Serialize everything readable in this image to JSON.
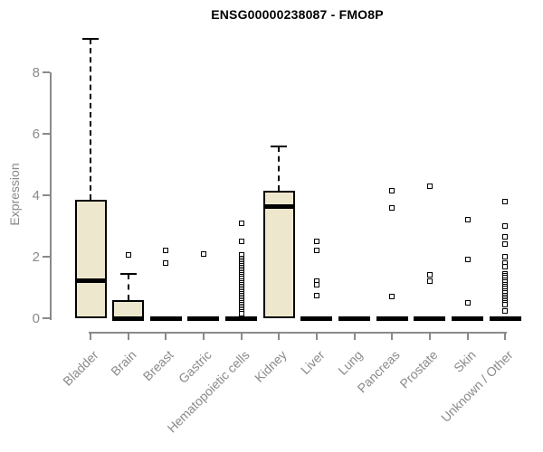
{
  "colors": {
    "box_fill": "#EDE7CE",
    "box_border": "#000000",
    "median": "#000000",
    "axis": "#8A8A8A",
    "title": "#000000",
    "background": "#FFFFFF",
    "outlier_fill": "#FFFFFF"
  },
  "chart_data": {
    "type": "boxplot",
    "title": "ENSG00000238087 - FMO8P",
    "xlabel": "",
    "ylabel": "Expression",
    "ylim": [
      0,
      9.4
    ],
    "yticks": [
      0,
      2,
      4,
      6,
      8
    ],
    "grid": false,
    "legend": "none",
    "categories": [
      "Bladder",
      "Brain",
      "Breast",
      "Gastric",
      "Hematopoietic cells",
      "Kidney",
      "Liver",
      "Lung",
      "Pancreas",
      "Prostate",
      "Skin",
      "Unknown / Other"
    ],
    "boxes": [
      {
        "category": "Bladder",
        "whisker_low": 0,
        "q1": 0,
        "median": 1.25,
        "q3": 3.85,
        "whisker_high": 9.1,
        "outliers": []
      },
      {
        "category": "Brain",
        "whisker_low": 0,
        "q1": 0,
        "median": 0,
        "q3": 0.6,
        "whisker_high": 1.45,
        "outliers": [
          2.05
        ]
      },
      {
        "category": "Breast",
        "whisker_low": 0,
        "q1": 0,
        "median": 0,
        "q3": 0,
        "whisker_high": 0,
        "outliers": [
          2.2,
          1.8
        ]
      },
      {
        "category": "Gastric",
        "whisker_low": 0,
        "q1": 0,
        "median": 0,
        "q3": 0,
        "whisker_high": 0,
        "outliers": [
          2.1
        ]
      },
      {
        "category": "Hematopoietic cells",
        "whisker_low": 0,
        "q1": 0,
        "median": 0,
        "q3": 0,
        "whisker_high": 0,
        "outliers": [
          3.1,
          2.5,
          2.05,
          1.95,
          1.88,
          1.82,
          1.76,
          1.7,
          1.64,
          1.58,
          1.52,
          1.46,
          1.4,
          1.34,
          1.28,
          1.22,
          1.16,
          1.1,
          1.04,
          0.98,
          0.92,
          0.86,
          0.8,
          0.74,
          0.68,
          0.62,
          0.56,
          0.5,
          0.44,
          0.38,
          0.32,
          0.26,
          0.2,
          0.15
        ]
      },
      {
        "category": "Kidney",
        "whisker_low": 0,
        "q1": 0,
        "median": 3.65,
        "q3": 4.15,
        "whisker_high": 5.6,
        "outliers": []
      },
      {
        "category": "Liver",
        "whisker_low": 0,
        "q1": 0,
        "median": 0,
        "q3": 0,
        "whisker_high": 0,
        "outliers": [
          2.5,
          2.2,
          1.2,
          1.1,
          0.75
        ]
      },
      {
        "category": "Lung",
        "whisker_low": 0,
        "q1": 0,
        "median": 0,
        "q3": 0,
        "whisker_high": 0,
        "outliers": []
      },
      {
        "category": "Pancreas",
        "whisker_low": 0,
        "q1": 0,
        "median": 0,
        "q3": 0,
        "whisker_high": 0,
        "outliers": [
          4.15,
          3.6,
          0.7
        ]
      },
      {
        "category": "Prostate",
        "whisker_low": 0,
        "q1": 0,
        "median": 0,
        "q3": 0,
        "whisker_high": 0,
        "outliers": [
          4.3,
          1.4,
          1.2
        ]
      },
      {
        "category": "Skin",
        "whisker_low": 0,
        "q1": 0,
        "median": 0,
        "q3": 0,
        "whisker_high": 0,
        "outliers": [
          3.2,
          1.9,
          0.5
        ]
      },
      {
        "category": "Unknown / Other",
        "whisker_low": 0,
        "q1": 0,
        "median": 0,
        "q3": 0,
        "whisker_high": 0,
        "outliers": [
          3.8,
          3.0,
          2.65,
          2.4,
          2.0,
          1.78,
          1.68,
          1.45,
          1.38,
          1.31,
          1.24,
          1.17,
          1.1,
          1.03,
          0.96,
          0.89,
          0.82,
          0.75,
          0.68,
          0.61,
          0.55,
          0.5,
          0.45,
          0.25
        ]
      }
    ]
  }
}
